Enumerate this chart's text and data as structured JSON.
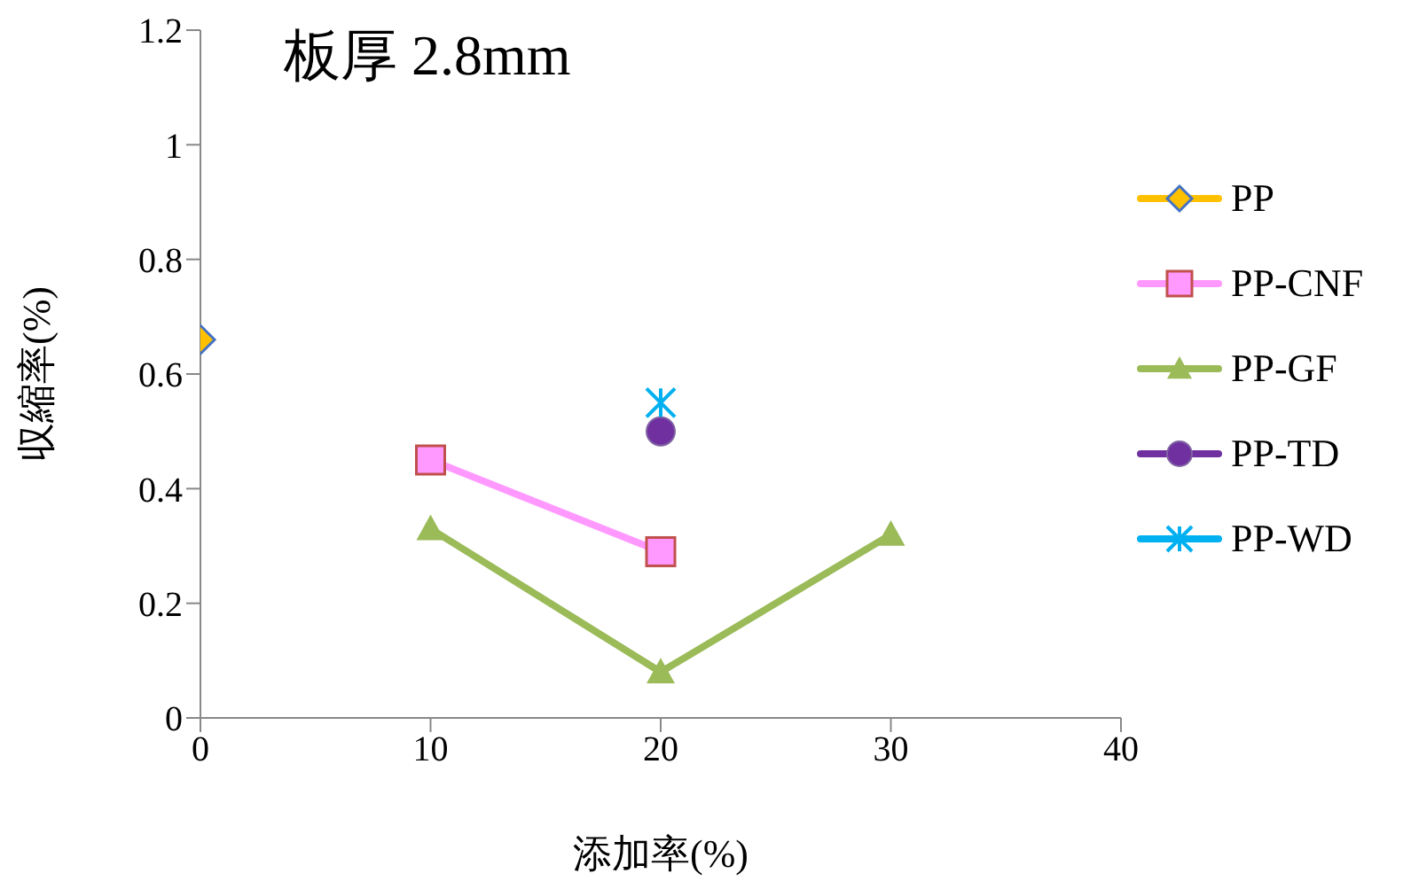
{
  "chart_data": {
    "type": "line",
    "title": "板厚 2.8mm",
    "xlabel": "添加率(%)",
    "ylabel": "収縮率(%)",
    "xlim": [
      0,
      40
    ],
    "xticks": [
      0,
      10,
      20,
      30,
      40
    ],
    "ylim": [
      0,
      1.2
    ],
    "yticks": [
      0,
      0.2,
      0.4,
      0.6,
      0.8,
      1,
      1.2
    ],
    "grid": false,
    "legend": "right",
    "series": [
      {
        "name": "PP",
        "color": "#ffc000",
        "marker": "diamond",
        "x": [
          0
        ],
        "values": [
          0.66
        ]
      },
      {
        "name": "PP-CNF",
        "color": "#ff99ff",
        "marker": "square",
        "x": [
          10,
          20
        ],
        "values": [
          0.45,
          0.29
        ]
      },
      {
        "name": "PP-GF",
        "color": "#9bbb59",
        "marker": "triangle",
        "x": [
          10,
          20,
          30
        ],
        "values": [
          0.33,
          0.08,
          0.32
        ]
      },
      {
        "name": "PP-TD",
        "color": "#7030a0",
        "marker": "circle",
        "x": [
          20
        ],
        "values": [
          0.5
        ]
      },
      {
        "name": "PP-WD",
        "color": "#00b0f0",
        "marker": "cross",
        "x": [
          20
        ],
        "values": [
          0.55
        ]
      }
    ]
  }
}
